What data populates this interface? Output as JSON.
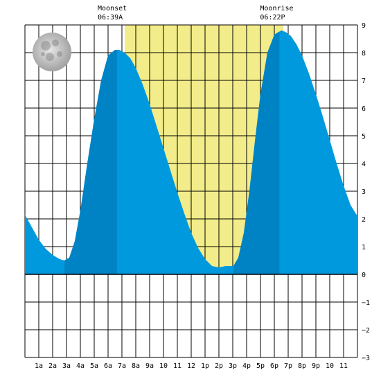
{
  "chart_data": {
    "type": "area",
    "title": "",
    "xlabel": "",
    "ylabel": "",
    "x_ticks": [
      "1a",
      "2a",
      "3a",
      "4a",
      "5a",
      "6a",
      "7a",
      "8a",
      "9a",
      "10",
      "11",
      "12",
      "1p",
      "2p",
      "3p",
      "4p",
      "5p",
      "6p",
      "7p",
      "8p",
      "9p",
      "10",
      "11"
    ],
    "xlim_hours": [
      0,
      24
    ],
    "ylim": [
      -3,
      9
    ],
    "y_ticks": [
      -3,
      -2,
      -1,
      0,
      1,
      2,
      3,
      4,
      5,
      6,
      7,
      8,
      9
    ],
    "grid": true,
    "daylight": {
      "start_hour": 7.2,
      "end_hour": 18.65,
      "color": "#f2ec8a"
    },
    "moon_phase": "full",
    "annotations": [
      {
        "label": "Moonset",
        "time": "06:39A",
        "hour": 6.65
      },
      {
        "label": "Moonrise",
        "time": "06:22P",
        "hour": 18.37
      }
    ],
    "series": [
      {
        "x": [
          0,
          0.5,
          1,
          1.5,
          2,
          2.5,
          2.85,
          3.2,
          3.6,
          4,
          4.5,
          5,
          5.5,
          6,
          6.5,
          6.8,
          7.2,
          7.6,
          8,
          8.5,
          9,
          9.5,
          10,
          10.5,
          11,
          11.5,
          12,
          12.5,
          13,
          13.5,
          14,
          14.5,
          15.05,
          15.4,
          15.8,
          16.2,
          16.6,
          17,
          17.5,
          18,
          18.5,
          18.8,
          19.2,
          19.6,
          20,
          20.5,
          21,
          21.5,
          22,
          22.5,
          23,
          23.5,
          24
        ],
        "values": [
          2.15,
          1.7,
          1.25,
          0.92,
          0.7,
          0.55,
          0.5,
          0.6,
          1.2,
          2.3,
          4.0,
          5.6,
          7.0,
          7.9,
          8.1,
          8.1,
          8.0,
          7.8,
          7.45,
          6.85,
          6.15,
          5.35,
          4.55,
          3.75,
          2.95,
          2.2,
          1.5,
          0.95,
          0.55,
          0.3,
          0.25,
          0.3,
          0.3,
          0.6,
          1.5,
          3.0,
          4.8,
          6.5,
          8.0,
          8.65,
          8.8,
          8.75,
          8.6,
          8.3,
          7.9,
          7.25,
          6.5,
          5.7,
          4.85,
          4.0,
          3.2,
          2.5,
          2.1
        ],
        "color": "#0099dd",
        "night_color": "#0083c4"
      }
    ]
  }
}
